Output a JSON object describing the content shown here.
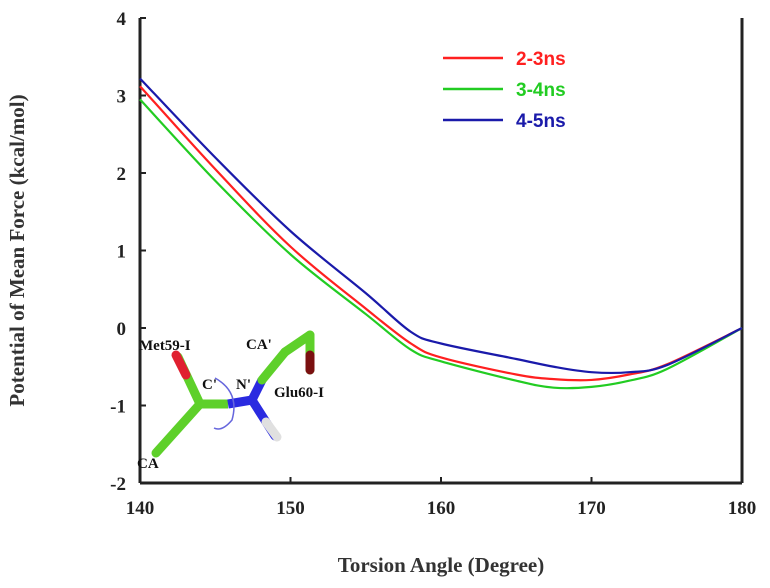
{
  "chart_data": {
    "type": "line",
    "title": "",
    "xlabel": "Torsion Angle (Degree)",
    "ylabel": "Potential of Mean Force (kcal/mol)",
    "xlim": [
      140,
      180
    ],
    "ylim": [
      -2,
      4
    ],
    "xticks": [
      140,
      150,
      160,
      170,
      180
    ],
    "yticks": [
      -2,
      -1,
      0,
      1,
      2,
      3,
      4
    ],
    "grid": false,
    "legend_position": "top-right",
    "x": [
      140,
      145,
      150,
      155,
      158,
      160,
      165,
      167.5,
      170,
      172.5,
      175,
      180
    ],
    "series": [
      {
        "name": "2-3ns",
        "color": "#ff2020",
        "values": [
          3.12,
          2.05,
          1.05,
          0.25,
          -0.2,
          -0.38,
          -0.6,
          -0.66,
          -0.67,
          -0.6,
          -0.47,
          0
        ]
      },
      {
        "name": "3-4ns",
        "color": "#22cc22",
        "values": [
          2.95,
          1.9,
          0.95,
          0.18,
          -0.28,
          -0.43,
          -0.68,
          -0.77,
          -0.76,
          -0.68,
          -0.53,
          0
        ]
      },
      {
        "name": "4-5ns",
        "color": "#1a1aaa",
        "values": [
          3.22,
          2.2,
          1.25,
          0.45,
          -0.05,
          -0.2,
          -0.4,
          -0.5,
          -0.57,
          -0.57,
          -0.48,
          0
        ]
      }
    ],
    "inset_labels": {
      "met": "Met59-I",
      "ca": "CA",
      "c": "C'",
      "n": "N'",
      "glu": "Glu60-I",
      "ca2": "CA'"
    }
  }
}
